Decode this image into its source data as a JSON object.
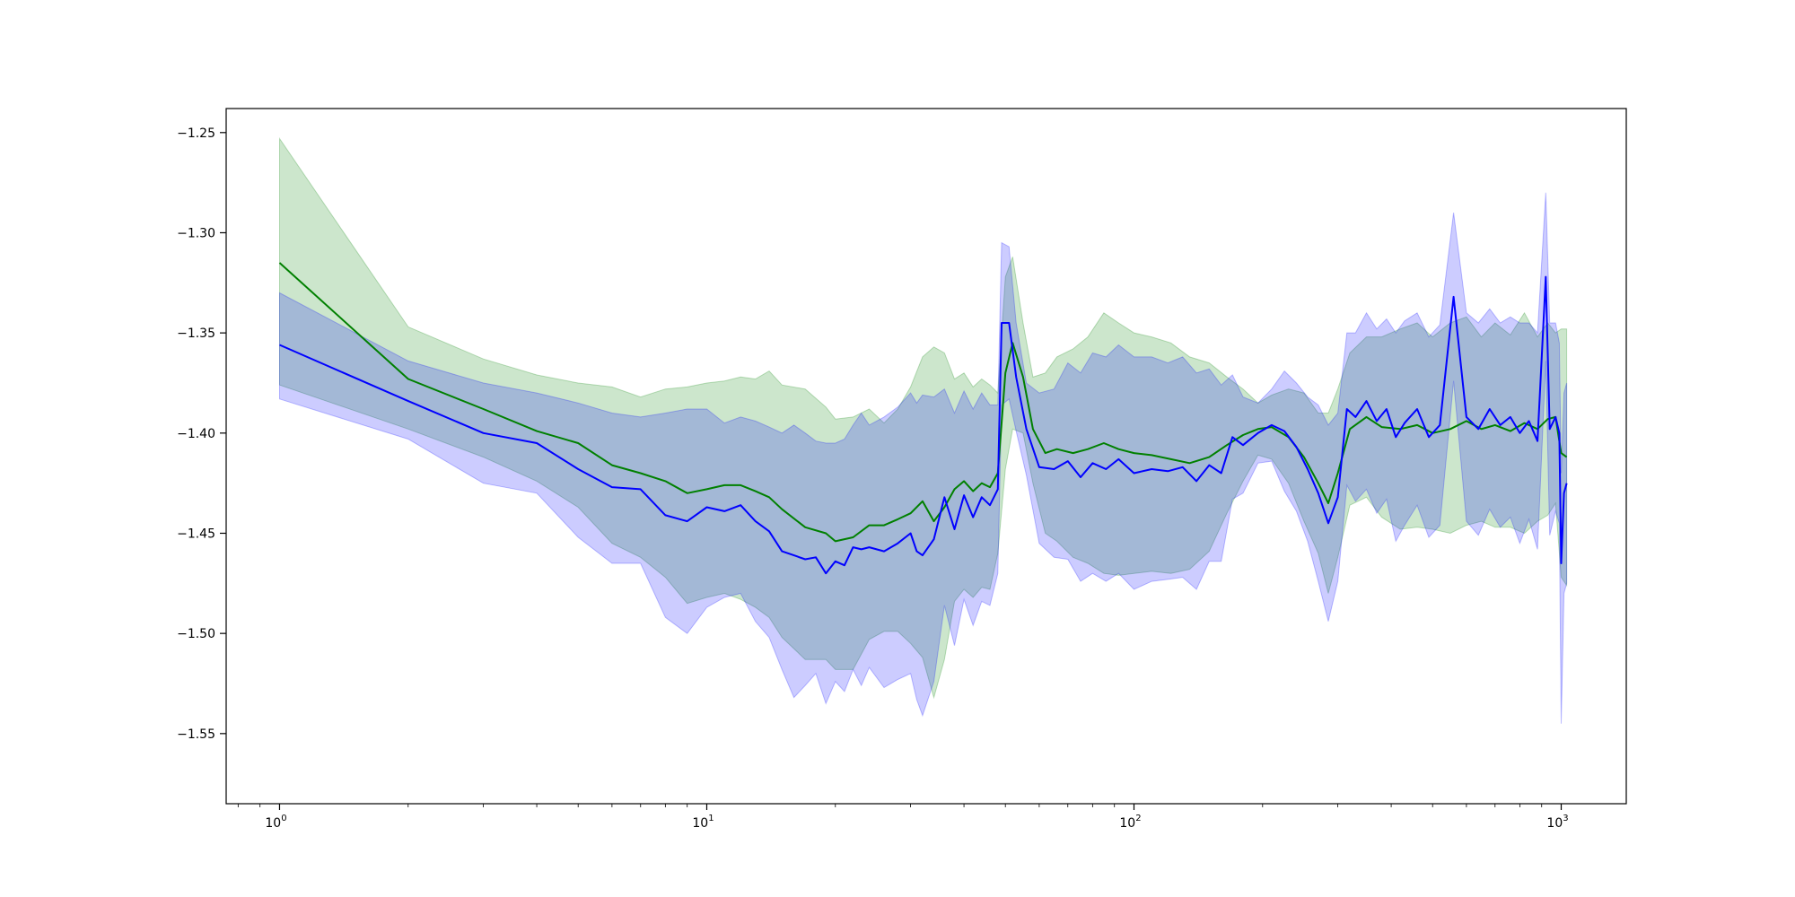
{
  "chart_data": {
    "type": "line",
    "title": "",
    "xlabel": "",
    "ylabel": "",
    "xscale": "log",
    "xlim": [
      0.75,
      1420
    ],
    "ylim": [
      -1.585,
      -1.238
    ],
    "grid": false,
    "legend": "none",
    "x_ticks": [
      {
        "value": 1,
        "base": "10",
        "exp": "0"
      },
      {
        "value": 10,
        "base": "10",
        "exp": "1"
      },
      {
        "value": 100,
        "base": "10",
        "exp": "2"
      },
      {
        "value": 1000,
        "base": "10",
        "exp": "3"
      }
    ],
    "y_ticks": [
      {
        "value": -1.25,
        "label": "−1.25"
      },
      {
        "value": -1.3,
        "label": "−1.30"
      },
      {
        "value": -1.35,
        "label": "−1.35"
      },
      {
        "value": -1.4,
        "label": "−1.40"
      },
      {
        "value": -1.45,
        "label": "−1.45"
      },
      {
        "value": -1.5,
        "label": "−1.50"
      },
      {
        "value": -1.55,
        "label": "−1.55"
      }
    ],
    "series": [
      {
        "color": "#008000",
        "band_color": "#008000",
        "band_opacity": 0.2,
        "points": [
          [
            1,
            -1.315,
            -1.253,
            -1.376
          ],
          [
            2,
            -1.373,
            -1.347,
            -1.398
          ],
          [
            3,
            -1.388,
            -1.363,
            -1.412
          ],
          [
            4,
            -1.399,
            -1.371,
            -1.424
          ],
          [
            5,
            -1.405,
            -1.375,
            -1.437
          ],
          [
            6,
            -1.416,
            -1.377,
            -1.455
          ],
          [
            7,
            -1.42,
            -1.382,
            -1.462
          ],
          [
            8,
            -1.424,
            -1.378,
            -1.472
          ],
          [
            9,
            -1.43,
            -1.377,
            -1.485
          ],
          [
            10,
            -1.428,
            -1.375,
            -1.482
          ],
          [
            11,
            -1.426,
            -1.374,
            -1.48
          ],
          [
            12,
            -1.426,
            -1.372,
            -1.483
          ],
          [
            13,
            -1.429,
            -1.373,
            -1.487
          ],
          [
            14,
            -1.432,
            -1.369,
            -1.492
          ],
          [
            15,
            -1.438,
            -1.376,
            -1.502
          ],
          [
            17,
            -1.447,
            -1.378,
            -1.513
          ],
          [
            19,
            -1.45,
            -1.387,
            -1.513
          ],
          [
            20,
            -1.454,
            -1.393,
            -1.518
          ],
          [
            22,
            -1.452,
            -1.392,
            -1.518
          ],
          [
            24,
            -1.446,
            -1.388,
            -1.503
          ],
          [
            26,
            -1.446,
            -1.395,
            -1.499
          ],
          [
            28,
            -1.443,
            -1.388,
            -1.499
          ],
          [
            30,
            -1.44,
            -1.377,
            -1.505
          ],
          [
            32,
            -1.434,
            -1.362,
            -1.512
          ],
          [
            34,
            -1.444,
            -1.357,
            -1.532
          ],
          [
            36,
            -1.437,
            -1.36,
            -1.513
          ],
          [
            38,
            -1.428,
            -1.373,
            -1.484
          ],
          [
            40,
            -1.424,
            -1.37,
            -1.478
          ],
          [
            42,
            -1.429,
            -1.377,
            -1.482
          ],
          [
            44,
            -1.425,
            -1.373,
            -1.477
          ],
          [
            46,
            -1.427,
            -1.376,
            -1.478
          ],
          [
            48,
            -1.42,
            -1.38,
            -1.46
          ],
          [
            50,
            -1.37,
            -1.322,
            -1.418
          ],
          [
            52,
            -1.355,
            -1.312,
            -1.398
          ],
          [
            55,
            -1.372,
            -1.345,
            -1.4
          ],
          [
            58,
            -1.398,
            -1.372,
            -1.425
          ],
          [
            62,
            -1.41,
            -1.37,
            -1.45
          ],
          [
            66,
            -1.408,
            -1.362,
            -1.454
          ],
          [
            72,
            -1.41,
            -1.358,
            -1.462
          ],
          [
            78,
            -1.408,
            -1.352,
            -1.465
          ],
          [
            85,
            -1.405,
            -1.34,
            -1.47
          ],
          [
            92,
            -1.408,
            -1.345,
            -1.471
          ],
          [
            100,
            -1.41,
            -1.35,
            -1.47
          ],
          [
            110,
            -1.411,
            -1.352,
            -1.469
          ],
          [
            122,
            -1.413,
            -1.355,
            -1.47
          ],
          [
            135,
            -1.415,
            -1.362,
            -1.468
          ],
          [
            150,
            -1.412,
            -1.365,
            -1.459
          ],
          [
            165,
            -1.406,
            -1.372,
            -1.44
          ],
          [
            180,
            -1.401,
            -1.378,
            -1.424
          ],
          [
            195,
            -1.398,
            -1.385,
            -1.411
          ],
          [
            210,
            -1.397,
            -1.381,
            -1.413
          ],
          [
            230,
            -1.402,
            -1.378,
            -1.425
          ],
          [
            250,
            -1.412,
            -1.38,
            -1.444
          ],
          [
            270,
            -1.425,
            -1.39,
            -1.46
          ],
          [
            285,
            -1.435,
            -1.39,
            -1.48
          ],
          [
            300,
            -1.42,
            -1.378,
            -1.462
          ],
          [
            320,
            -1.398,
            -1.36,
            -1.436
          ],
          [
            350,
            -1.392,
            -1.352,
            -1.432
          ],
          [
            380,
            -1.397,
            -1.352,
            -1.442
          ],
          [
            420,
            -1.398,
            -1.348,
            -1.448
          ],
          [
            460,
            -1.396,
            -1.345,
            -1.447
          ],
          [
            500,
            -1.4,
            -1.352,
            -1.448
          ],
          [
            550,
            -1.398,
            -1.345,
            -1.45
          ],
          [
            600,
            -1.394,
            -1.342,
            -1.446
          ],
          [
            650,
            -1.398,
            -1.352,
            -1.444
          ],
          [
            700,
            -1.396,
            -1.345,
            -1.447
          ],
          [
            760,
            -1.399,
            -1.351,
            -1.447
          ],
          [
            820,
            -1.395,
            -1.34,
            -1.45
          ],
          [
            880,
            -1.398,
            -1.352,
            -1.444
          ],
          [
            930,
            -1.393,
            -1.345,
            -1.441
          ],
          [
            970,
            -1.392,
            -1.35,
            -1.435
          ],
          [
            1000,
            -1.41,
            -1.348,
            -1.472
          ],
          [
            1030,
            -1.412,
            -1.348,
            -1.476
          ]
        ]
      },
      {
        "color": "#0000ff",
        "band_color": "#0000ff",
        "band_opacity": 0.2,
        "points": [
          [
            1,
            -1.356,
            -1.33,
            -1.383
          ],
          [
            2,
            -1.384,
            -1.364,
            -1.403
          ],
          [
            3,
            -1.4,
            -1.375,
            -1.425
          ],
          [
            4,
            -1.405,
            -1.38,
            -1.43
          ],
          [
            5,
            -1.418,
            -1.385,
            -1.452
          ],
          [
            6,
            -1.427,
            -1.39,
            -1.465
          ],
          [
            7,
            -1.428,
            -1.392,
            -1.465
          ],
          [
            8,
            -1.441,
            -1.39,
            -1.492
          ],
          [
            9,
            -1.444,
            -1.388,
            -1.5
          ],
          [
            10,
            -1.437,
            -1.388,
            -1.487
          ],
          [
            11,
            -1.439,
            -1.395,
            -1.482
          ],
          [
            12,
            -1.436,
            -1.392,
            -1.48
          ],
          [
            13,
            -1.444,
            -1.394,
            -1.494
          ],
          [
            14,
            -1.449,
            -1.397,
            -1.502
          ],
          [
            15,
            -1.459,
            -1.4,
            -1.518
          ],
          [
            16,
            -1.461,
            -1.396,
            -1.532
          ],
          [
            17,
            -1.463,
            -1.4,
            -1.526
          ],
          [
            18,
            -1.462,
            -1.404,
            -1.52
          ],
          [
            19,
            -1.47,
            -1.405,
            -1.535
          ],
          [
            20,
            -1.464,
            -1.405,
            -1.524
          ],
          [
            21,
            -1.466,
            -1.403,
            -1.529
          ],
          [
            22,
            -1.457,
            -1.396,
            -1.518
          ],
          [
            23,
            -1.458,
            -1.39,
            -1.526
          ],
          [
            24,
            -1.457,
            -1.396,
            -1.517
          ],
          [
            26,
            -1.459,
            -1.392,
            -1.527
          ],
          [
            28,
            -1.455,
            -1.387,
            -1.523
          ],
          [
            30,
            -1.45,
            -1.38,
            -1.52
          ],
          [
            31,
            -1.459,
            -1.385,
            -1.533
          ],
          [
            32,
            -1.461,
            -1.381,
            -1.541
          ],
          [
            34,
            -1.453,
            -1.382,
            -1.524
          ],
          [
            36,
            -1.432,
            -1.378,
            -1.486
          ],
          [
            38,
            -1.448,
            -1.39,
            -1.506
          ],
          [
            40,
            -1.431,
            -1.379,
            -1.483
          ],
          [
            42,
            -1.442,
            -1.388,
            -1.496
          ],
          [
            44,
            -1.432,
            -1.38,
            -1.484
          ],
          [
            46,
            -1.436,
            -1.386,
            -1.486
          ],
          [
            48,
            -1.428,
            -1.386,
            -1.47
          ],
          [
            49,
            -1.345,
            -1.305,
            -1.386
          ],
          [
            51,
            -1.345,
            -1.307,
            -1.383
          ],
          [
            53,
            -1.372,
            -1.345,
            -1.399
          ],
          [
            56,
            -1.398,
            -1.375,
            -1.421
          ],
          [
            60,
            -1.417,
            -1.38,
            -1.455
          ],
          [
            65,
            -1.418,
            -1.378,
            -1.462
          ],
          [
            70,
            -1.414,
            -1.365,
            -1.463
          ],
          [
            75,
            -1.422,
            -1.37,
            -1.474
          ],
          [
            80,
            -1.415,
            -1.36,
            -1.47
          ],
          [
            86,
            -1.418,
            -1.362,
            -1.474
          ],
          [
            92,
            -1.413,
            -1.356,
            -1.47
          ],
          [
            100,
            -1.42,
            -1.362,
            -1.478
          ],
          [
            110,
            -1.418,
            -1.362,
            -1.474
          ],
          [
            120,
            -1.419,
            -1.365,
            -1.473
          ],
          [
            130,
            -1.417,
            -1.362,
            -1.472
          ],
          [
            140,
            -1.424,
            -1.37,
            -1.478
          ],
          [
            150,
            -1.416,
            -1.368,
            -1.464
          ],
          [
            160,
            -1.42,
            -1.376,
            -1.464
          ],
          [
            170,
            -1.402,
            -1.371,
            -1.433
          ],
          [
            180,
            -1.406,
            -1.382,
            -1.43
          ],
          [
            195,
            -1.4,
            -1.385,
            -1.415
          ],
          [
            210,
            -1.396,
            -1.378,
            -1.414
          ],
          [
            225,
            -1.399,
            -1.369,
            -1.429
          ],
          [
            240,
            -1.407,
            -1.375,
            -1.439
          ],
          [
            255,
            -1.418,
            -1.382,
            -1.454
          ],
          [
            270,
            -1.43,
            -1.386,
            -1.474
          ],
          [
            285,
            -1.445,
            -1.396,
            -1.494
          ],
          [
            300,
            -1.432,
            -1.39,
            -1.474
          ],
          [
            315,
            -1.388,
            -1.35,
            -1.426
          ],
          [
            330,
            -1.392,
            -1.35,
            -1.434
          ],
          [
            350,
            -1.384,
            -1.34,
            -1.428
          ],
          [
            370,
            -1.394,
            -1.348,
            -1.44
          ],
          [
            390,
            -1.388,
            -1.343,
            -1.433
          ],
          [
            410,
            -1.402,
            -1.35,
            -1.454
          ],
          [
            430,
            -1.395,
            -1.344,
            -1.446
          ],
          [
            460,
            -1.388,
            -1.34,
            -1.436
          ],
          [
            490,
            -1.402,
            -1.352,
            -1.452
          ],
          [
            520,
            -1.396,
            -1.346,
            -1.446
          ],
          [
            560,
            -1.332,
            -1.29,
            -1.374
          ],
          [
            600,
            -1.392,
            -1.34,
            -1.444
          ],
          [
            640,
            -1.398,
            -1.345,
            -1.451
          ],
          [
            680,
            -1.388,
            -1.338,
            -1.438
          ],
          [
            720,
            -1.396,
            -1.345,
            -1.447
          ],
          [
            760,
            -1.392,
            -1.342,
            -1.442
          ],
          [
            800,
            -1.4,
            -1.345,
            -1.455
          ],
          [
            840,
            -1.394,
            -1.345,
            -1.443
          ],
          [
            880,
            -1.404,
            -1.35,
            -1.458
          ],
          [
            920,
            -1.322,
            -1.28,
            -1.364
          ],
          [
            940,
            -1.398,
            -1.345,
            -1.451
          ],
          [
            970,
            -1.392,
            -1.345,
            -1.439
          ],
          [
            990,
            -1.4,
            -1.355,
            -1.445
          ],
          [
            1000,
            -1.465,
            -1.42,
            -1.545
          ],
          [
            1015,
            -1.43,
            -1.38,
            -1.48
          ],
          [
            1030,
            -1.425,
            -1.375,
            -1.475
          ]
        ]
      }
    ]
  }
}
